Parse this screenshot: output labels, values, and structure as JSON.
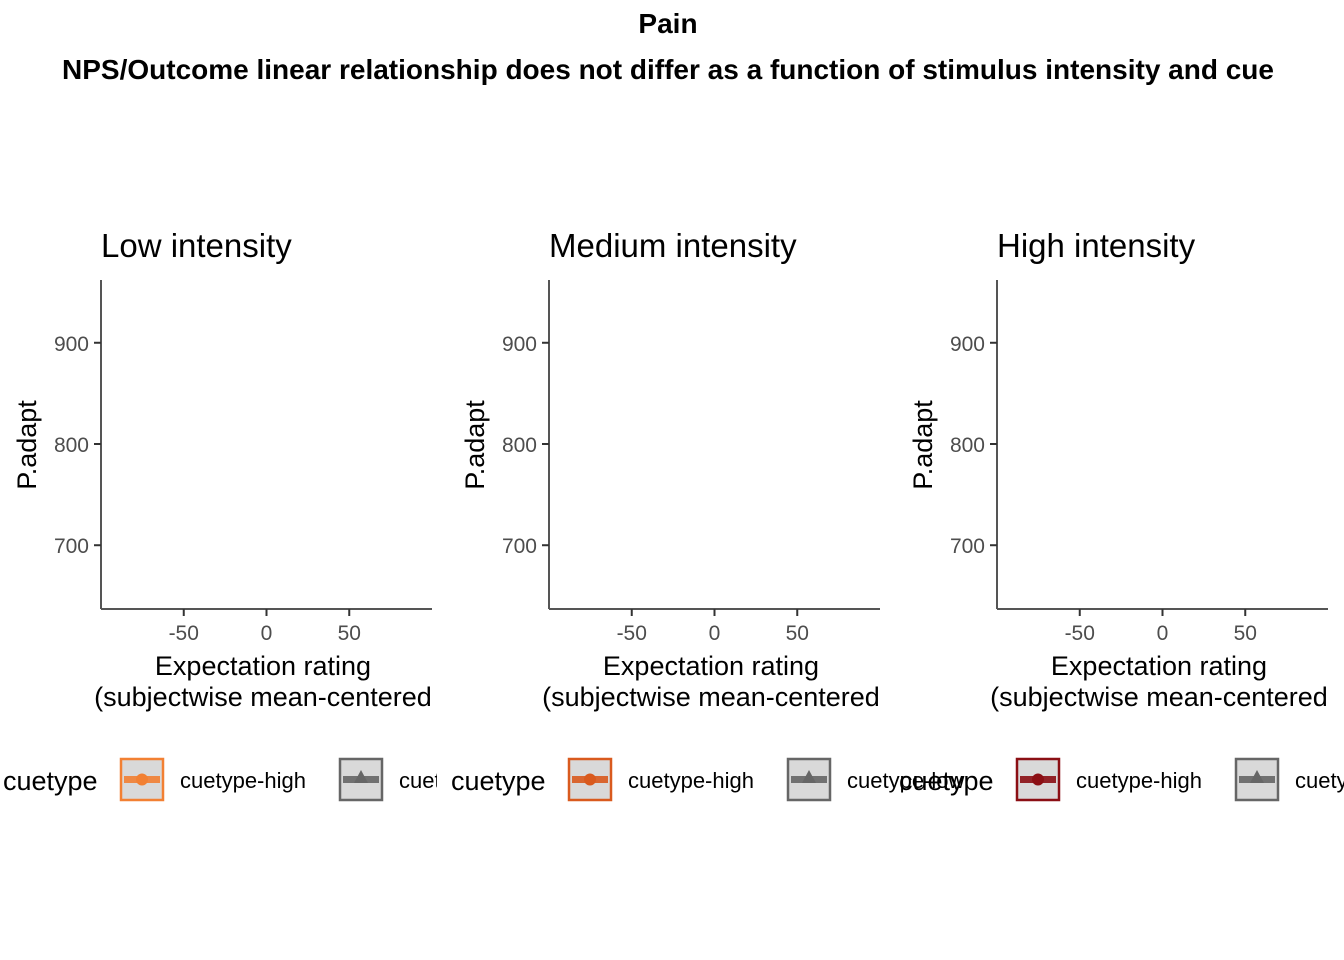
{
  "title": "Pain",
  "subtitle": "NPS/Outcome linear relationship does not differ as a function of stimulus intensity and cue",
  "chart_data": [
    {
      "type": "scatter",
      "title": "Low intensity",
      "xlabel_lines": [
        "Expectation rating",
        "(subjectwise mean-centered"
      ],
      "ylabel": "P.adapt",
      "x_ticks": [
        -50,
        0,
        50
      ],
      "y_ticks": [
        700,
        800,
        900
      ],
      "xlim": [
        -100,
        100
      ],
      "ylim": [
        637,
        962
      ],
      "legend": {
        "title": "cuetype",
        "position": "bottom",
        "entries": [
          {
            "label": "cuetype-high",
            "color": "#F28033",
            "shape": "circle"
          },
          {
            "label": "cuetype-low",
            "color": "#666666",
            "shape": "triangle"
          }
        ]
      },
      "series": [
        {
          "name": "cuetype-high",
          "points": []
        },
        {
          "name": "cuetype-low",
          "points": []
        }
      ]
    },
    {
      "type": "scatter",
      "title": "Medium intensity",
      "xlabel_lines": [
        "Expectation rating",
        "(subjectwise mean-centered"
      ],
      "ylabel": "P.adapt",
      "x_ticks": [
        -50,
        0,
        50
      ],
      "y_ticks": [
        700,
        800,
        900
      ],
      "xlim": [
        -100,
        100
      ],
      "ylim": [
        637,
        962
      ],
      "legend": {
        "title": "cuetype",
        "position": "bottom",
        "entries": [
          {
            "label": "cuetype-high",
            "color": "#D95A1E",
            "shape": "circle"
          },
          {
            "label": "cuetype-low",
            "color": "#666666",
            "shape": "triangle"
          }
        ]
      },
      "series": [
        {
          "name": "cuetype-high",
          "points": []
        },
        {
          "name": "cuetype-low",
          "points": []
        }
      ]
    },
    {
      "type": "scatter",
      "title": "High intensity",
      "xlabel_lines": [
        "Expectation rating",
        "(subjectwise mean-centered"
      ],
      "ylabel": "P.adapt",
      "x_ticks": [
        -50,
        0,
        50
      ],
      "y_ticks": [
        700,
        800,
        900
      ],
      "xlim": [
        -100,
        100
      ],
      "ylim": [
        637,
        962
      ],
      "legend": {
        "title": "cuetype",
        "position": "bottom",
        "entries": [
          {
            "label": "cuetype-high",
            "color": "#8B0F14",
            "shape": "circle"
          },
          {
            "label": "cuetype-low",
            "color": "#666666",
            "shape": "triangle"
          }
        ]
      },
      "series": [
        {
          "name": "cuetype-high",
          "points": []
        },
        {
          "name": "cuetype-low",
          "points": []
        }
      ]
    }
  ]
}
